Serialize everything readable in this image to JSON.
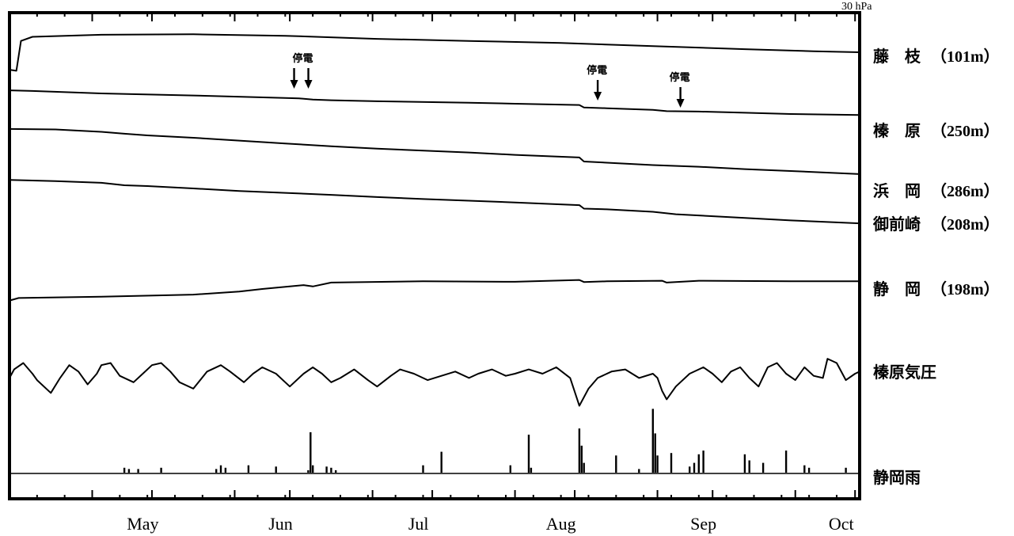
{
  "corner_note": "30 hPa",
  "chart_data": {
    "type": "line",
    "title": "",
    "xlabel": "",
    "ylabel": "",
    "x_axis": {
      "months": [
        "May",
        "Jun",
        "Jul",
        "Aug",
        "Sep",
        "Oct"
      ],
      "range_days": [
        0,
        185
      ],
      "month_label_day": [
        29,
        59,
        89,
        120,
        151,
        181
      ],
      "major_tick_day": [
        0,
        18,
        31,
        49,
        61,
        79,
        92,
        110,
        123,
        141,
        153,
        171,
        184
      ]
    },
    "series": [
      {
        "name": "藤 枝（101m）",
        "label_main": "藤　枝",
        "label_depth": "（101m）",
        "kind": "waterlevel",
        "points": [
          [
            0,
            -0.34
          ],
          [
            1.5,
            -0.36
          ],
          [
            2.5,
            0.22
          ],
          [
            5,
            0.3
          ],
          [
            20,
            0.34
          ],
          [
            40,
            0.35
          ],
          [
            60,
            0.32
          ],
          [
            80,
            0.26
          ],
          [
            100,
            0.22
          ],
          [
            120,
            0.18
          ],
          [
            140,
            0.12
          ],
          [
            160,
            0.06
          ],
          [
            175,
            0.02
          ],
          [
            185,
            0
          ]
        ]
      },
      {
        "name": "榛 原（250m）",
        "label_main": "榛　原",
        "label_depth": "（250m）",
        "kind": "waterlevel",
        "points": [
          [
            0,
            -1.85
          ],
          [
            5,
            -1.88
          ],
          [
            20,
            -2.0
          ],
          [
            40,
            -2.1
          ],
          [
            60,
            -2.22
          ],
          [
            63,
            -2.24
          ],
          [
            66,
            -2.3
          ],
          [
            70,
            -2.33
          ],
          [
            80,
            -2.38
          ],
          [
            100,
            -2.45
          ],
          [
            110,
            -2.5
          ],
          [
            124,
            -2.56
          ],
          [
            125,
            -2.68
          ],
          [
            130,
            -2.72
          ],
          [
            140,
            -2.8
          ],
          [
            143,
            -2.86
          ],
          [
            150,
            -2.88
          ],
          [
            160,
            -2.94
          ],
          [
            170,
            -3.0
          ],
          [
            185,
            -3.05
          ]
        ]
      },
      {
        "name": "浜 岡（286m）",
        "label_main": "浜　岡",
        "label_depth": "（286m）",
        "kind": "waterlevel",
        "points": [
          [
            0,
            -3.23
          ],
          [
            10,
            -3.25
          ],
          [
            20,
            -3.35
          ],
          [
            25,
            -3.43
          ],
          [
            30,
            -3.5
          ],
          [
            40,
            -3.6
          ],
          [
            50,
            -3.72
          ],
          [
            60,
            -3.84
          ],
          [
            70,
            -3.96
          ],
          [
            80,
            -4.06
          ],
          [
            100,
            -4.22
          ],
          [
            110,
            -4.32
          ],
          [
            124,
            -4.43
          ],
          [
            125,
            -4.6
          ],
          [
            130,
            -4.65
          ],
          [
            140,
            -4.75
          ],
          [
            150,
            -4.82
          ],
          [
            160,
            -4.92
          ],
          [
            170,
            -5.0
          ],
          [
            185,
            -5.13
          ]
        ]
      },
      {
        "name": "御前崎（208m）",
        "label_main": "御前崎",
        "label_depth": "（208m）",
        "kind": "waterlevel",
        "points": [
          [
            0,
            -5.2
          ],
          [
            10,
            -5.25
          ],
          [
            20,
            -5.32
          ],
          [
            25,
            -5.42
          ],
          [
            30,
            -5.45
          ],
          [
            40,
            -5.55
          ],
          [
            50,
            -5.65
          ],
          [
            60,
            -5.73
          ],
          [
            70,
            -5.81
          ],
          [
            80,
            -5.9
          ],
          [
            90,
            -5.98
          ],
          [
            100,
            -6.05
          ],
          [
            110,
            -6.12
          ],
          [
            124,
            -6.23
          ],
          [
            125,
            -6.37
          ],
          [
            130,
            -6.4
          ],
          [
            140,
            -6.5
          ],
          [
            145,
            -6.6
          ],
          [
            150,
            -6.65
          ],
          [
            160,
            -6.75
          ],
          [
            170,
            -6.85
          ],
          [
            185,
            -6.97
          ]
        ]
      },
      {
        "name": "静 岡（198m）",
        "label_main": "静　岡",
        "label_depth": "（198m）",
        "kind": "waterlevel",
        "points": [
          [
            0,
            -9.65
          ],
          [
            2,
            -9.55
          ],
          [
            20,
            -9.5
          ],
          [
            40,
            -9.42
          ],
          [
            50,
            -9.3
          ],
          [
            55,
            -9.2
          ],
          [
            64,
            -9.05
          ],
          [
            66,
            -9.1
          ],
          [
            70,
            -8.95
          ],
          [
            90,
            -8.9
          ],
          [
            110,
            -8.92
          ],
          [
            124,
            -8.85
          ],
          [
            125,
            -8.93
          ],
          [
            130,
            -8.9
          ],
          [
            142,
            -8.88
          ],
          [
            143,
            -8.95
          ],
          [
            150,
            -8.88
          ],
          [
            170,
            -8.9
          ],
          [
            185,
            -8.9
          ]
        ]
      },
      {
        "name": "榛原気圧",
        "label_main": "榛原気圧",
        "label_depth": "",
        "kind": "pressure",
        "units": "hPa",
        "points": [
          [
            0,
            1014
          ],
          [
            1,
            1018
          ],
          [
            3,
            1021
          ],
          [
            5,
            1016
          ],
          [
            6,
            1013
          ],
          [
            9,
            1007
          ],
          [
            11,
            1014
          ],
          [
            13,
            1020
          ],
          [
            15,
            1017
          ],
          [
            17,
            1011
          ],
          [
            19,
            1016
          ],
          [
            20,
            1020
          ],
          [
            22,
            1021
          ],
          [
            24,
            1015
          ],
          [
            27,
            1012
          ],
          [
            29,
            1016
          ],
          [
            31,
            1020
          ],
          [
            33,
            1021
          ],
          [
            35,
            1017
          ],
          [
            37,
            1012
          ],
          [
            40,
            1009
          ],
          [
            43,
            1017
          ],
          [
            46,
            1020
          ],
          [
            48,
            1017
          ],
          [
            51,
            1012
          ],
          [
            53,
            1016
          ],
          [
            55,
            1019
          ],
          [
            58,
            1016
          ],
          [
            61,
            1010
          ],
          [
            64,
            1016
          ],
          [
            66,
            1019
          ],
          [
            68,
            1016
          ],
          [
            70,
            1012
          ],
          [
            72,
            1014
          ],
          [
            75,
            1018
          ],
          [
            78,
            1013
          ],
          [
            80,
            1010
          ],
          [
            83,
            1015
          ],
          [
            85,
            1018
          ],
          [
            88,
            1016
          ],
          [
            91,
            1013
          ],
          [
            94,
            1015
          ],
          [
            97,
            1017
          ],
          [
            100,
            1014
          ],
          [
            102,
            1016
          ],
          [
            105,
            1018
          ],
          [
            108,
            1015
          ],
          [
            110,
            1016
          ],
          [
            113,
            1018
          ],
          [
            116,
            1016
          ],
          [
            119,
            1019
          ],
          [
            122,
            1014
          ],
          [
            124,
            1001
          ],
          [
            126,
            1009
          ],
          [
            128,
            1014
          ],
          [
            131,
            1017
          ],
          [
            134,
            1018
          ],
          [
            137,
            1014
          ],
          [
            140,
            1016
          ],
          [
            141,
            1014
          ],
          [
            142,
            1008
          ],
          [
            143,
            1004
          ],
          [
            145,
            1010
          ],
          [
            148,
            1016
          ],
          [
            151,
            1019
          ],
          [
            153,
            1016
          ],
          [
            155,
            1012
          ],
          [
            157,
            1017
          ],
          [
            159,
            1019
          ],
          [
            161,
            1014
          ],
          [
            163,
            1010
          ],
          [
            165,
            1019
          ],
          [
            167,
            1021
          ],
          [
            169,
            1016
          ],
          [
            171,
            1013
          ],
          [
            173,
            1019
          ],
          [
            175,
            1015
          ],
          [
            177,
            1014
          ],
          [
            178,
            1023
          ],
          [
            180,
            1021
          ],
          [
            182,
            1013
          ],
          [
            184,
            1016
          ],
          [
            185,
            1017
          ]
        ]
      },
      {
        "name": "静岡雨",
        "label_main": "静岡雨",
        "label_depth": "",
        "kind": "rain",
        "units": "mm",
        "bars": [
          [
            25,
            4
          ],
          [
            26,
            3
          ],
          [
            28,
            3
          ],
          [
            33,
            4
          ],
          [
            45,
            3
          ],
          [
            46,
            6
          ],
          [
            47,
            4
          ],
          [
            52,
            6
          ],
          [
            58,
            5
          ],
          [
            65,
            2
          ],
          [
            65.5,
            33
          ],
          [
            66,
            6
          ],
          [
            69,
            5
          ],
          [
            70,
            4
          ],
          [
            71,
            2
          ],
          [
            90,
            6
          ],
          [
            94,
            17
          ],
          [
            109,
            6
          ],
          [
            113,
            31
          ],
          [
            113.5,
            4
          ],
          [
            124,
            36
          ],
          [
            124.5,
            22
          ],
          [
            125,
            8
          ],
          [
            132,
            14
          ],
          [
            137,
            3
          ],
          [
            140,
            52
          ],
          [
            140.5,
            32
          ],
          [
            141,
            14
          ],
          [
            144,
            16
          ],
          [
            148,
            5
          ],
          [
            149,
            8
          ],
          [
            150,
            15
          ],
          [
            151,
            18
          ],
          [
            160,
            15
          ],
          [
            161,
            10
          ],
          [
            164,
            8
          ],
          [
            169,
            18
          ],
          [
            173,
            6
          ],
          [
            174,
            4
          ],
          [
            182,
            4
          ]
        ]
      }
    ],
    "annotations": [
      {
        "text": "停電",
        "day": 64
      },
      {
        "text": "停電",
        "day": 128
      },
      {
        "text": "停電",
        "day": 146
      }
    ],
    "grid": false,
    "legend": "right"
  }
}
